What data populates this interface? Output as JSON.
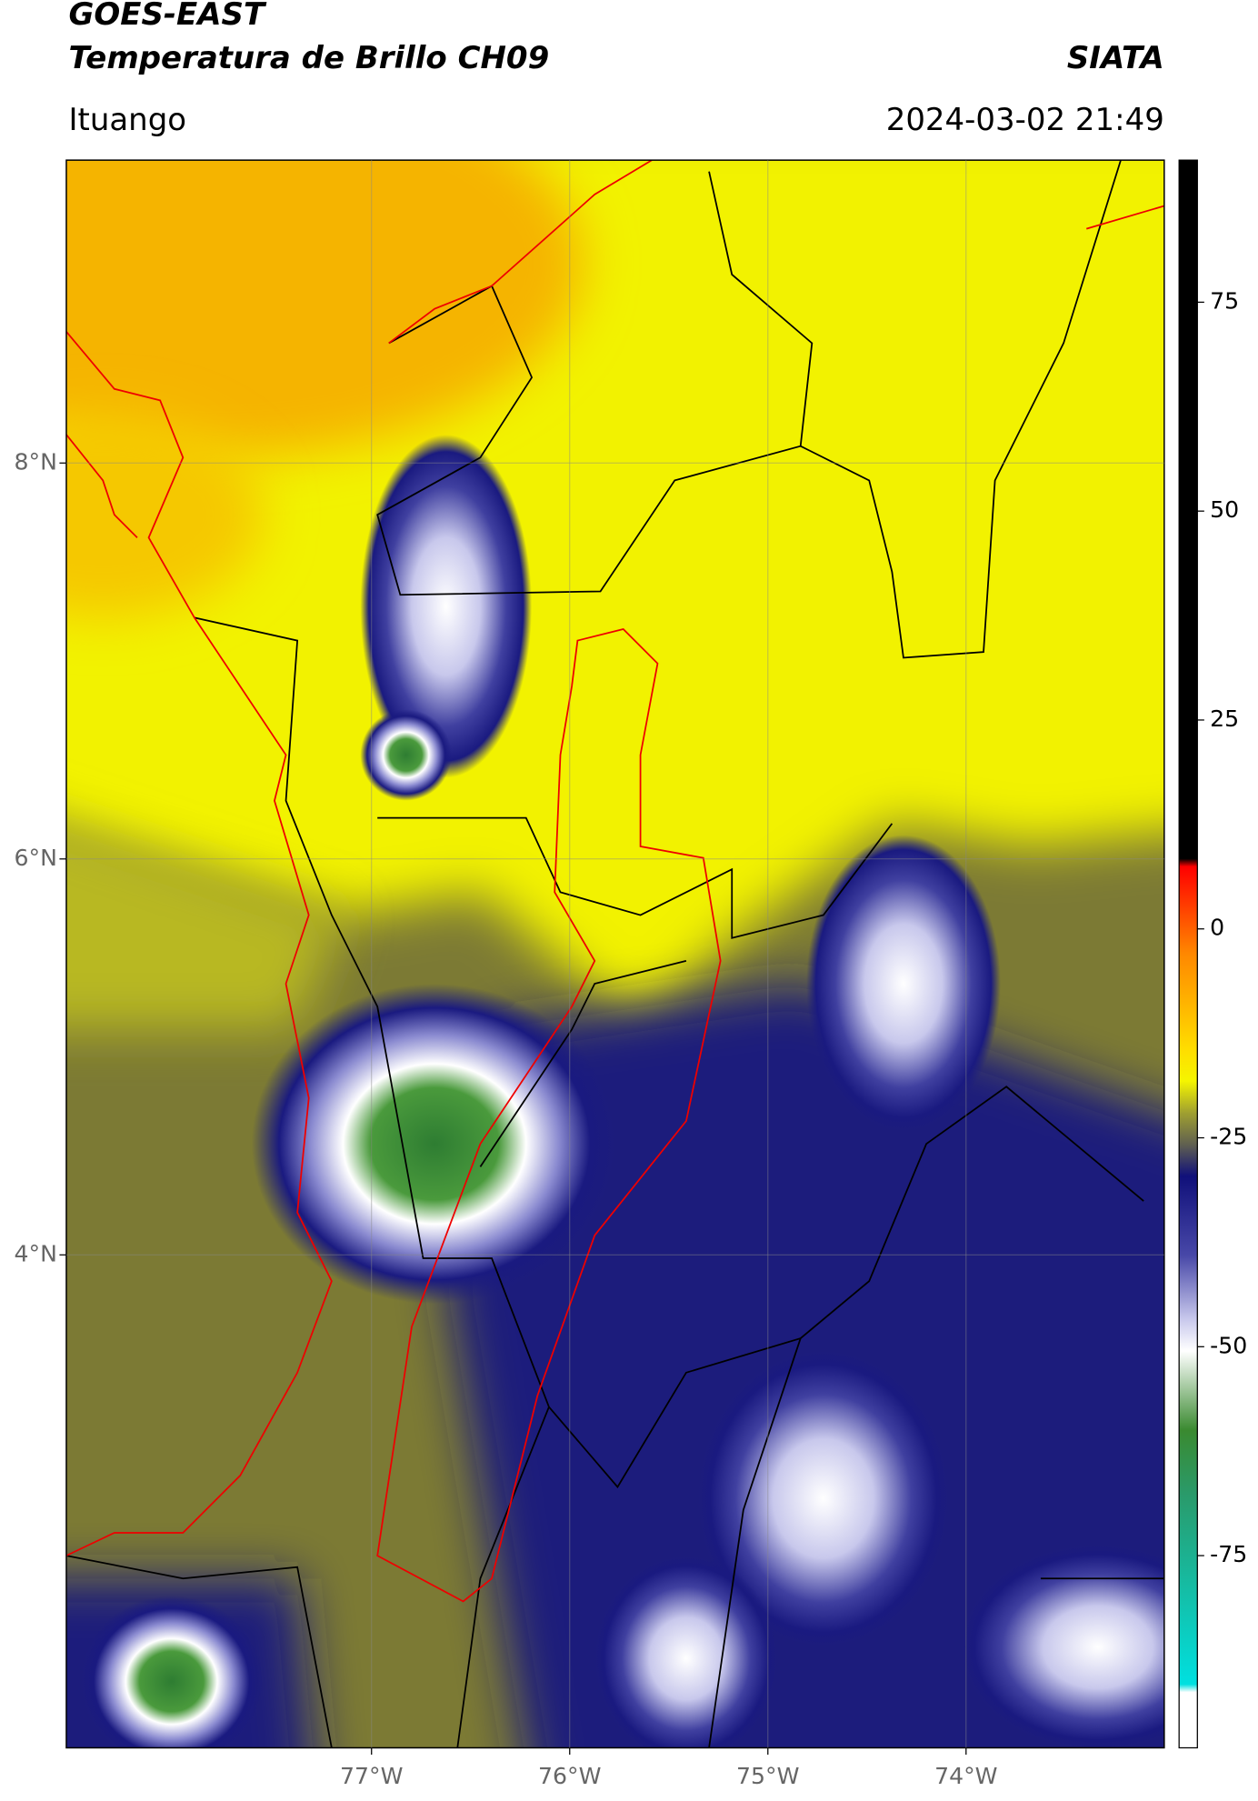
{
  "header": {
    "satellite": "GOES-EAST",
    "product": "Temperatura de Brillo CH09",
    "agency": "SIATA",
    "location": "Ituango",
    "timestamp": "2024-03-02 21:49"
  },
  "map": {
    "lon_range": [
      -78.54,
      -73.0
    ],
    "lat_range": [
      1.51,
      9.53
    ],
    "lon_ticks": [
      {
        "value": -77,
        "label": "77°W"
      },
      {
        "value": -76,
        "label": "76°W"
      },
      {
        "value": -75,
        "label": "75°W"
      },
      {
        "value": -74,
        "label": "74°W"
      }
    ],
    "lat_ticks": [
      {
        "value": 8,
        "label": "8°N"
      },
      {
        "value": 6,
        "label": "6°N"
      },
      {
        "value": 4,
        "label": "4°N"
      }
    ]
  },
  "colorbar": {
    "range": [
      -98,
      92
    ],
    "ticks": [
      75,
      50,
      25,
      0,
      -25,
      -50,
      -75
    ]
  }
}
